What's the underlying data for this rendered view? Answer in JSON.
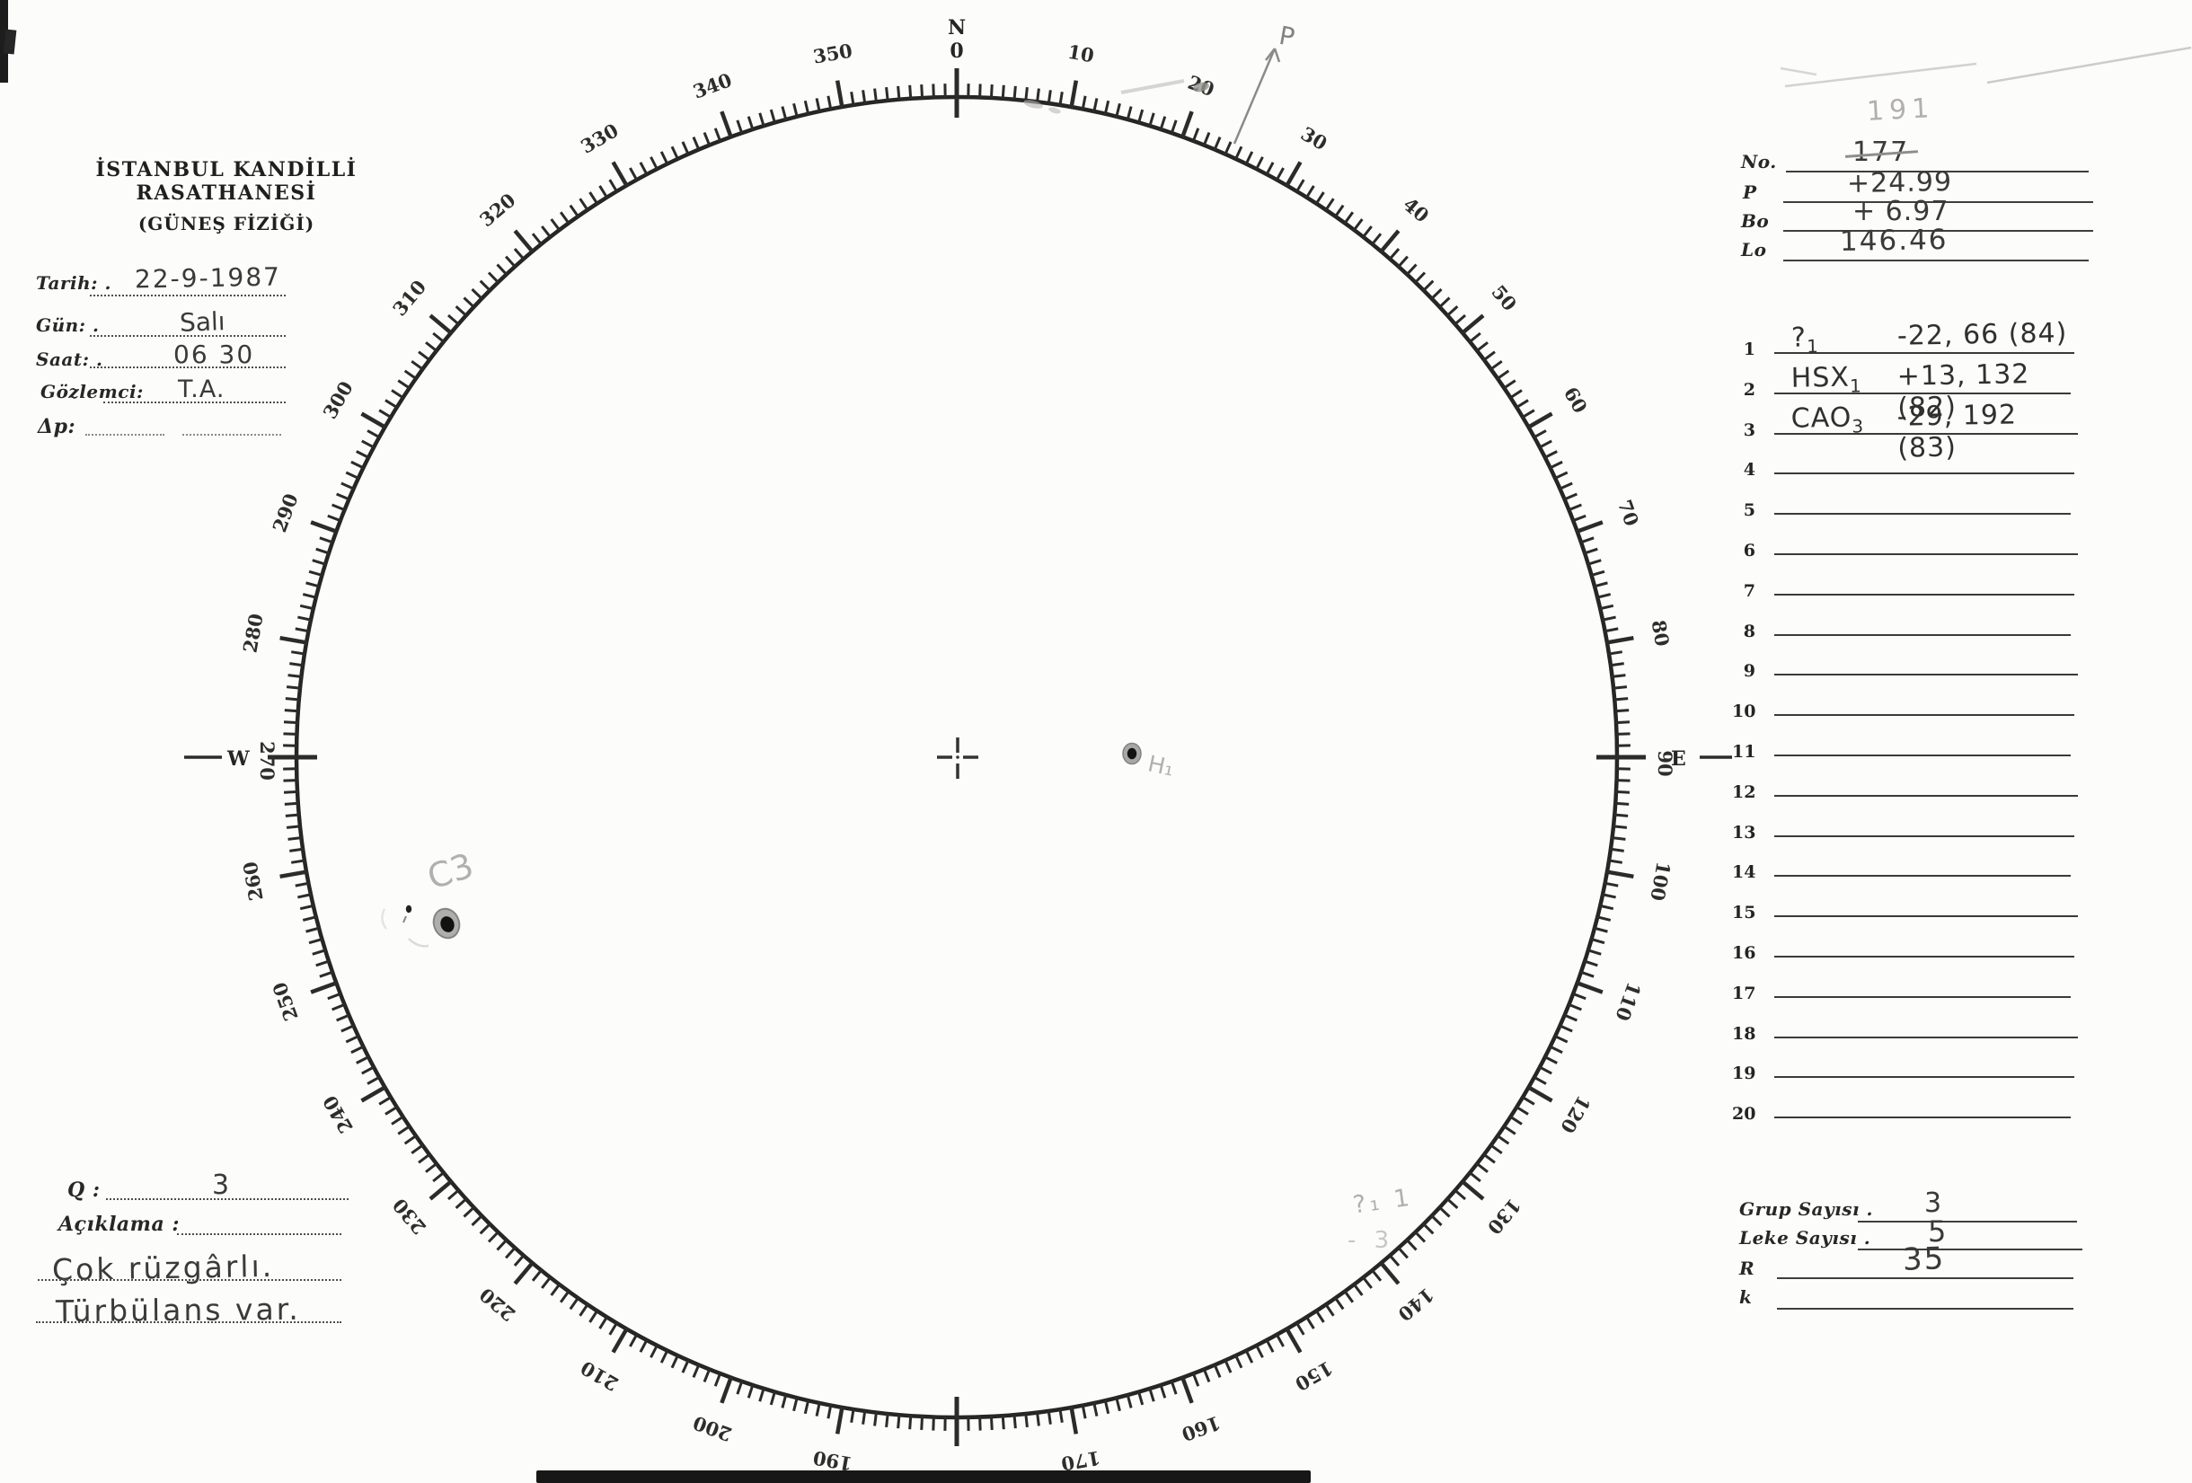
{
  "header": {
    "line1": "İSTANBUL KANDİLLİ RASATHANESİ",
    "line2": "(GÜNEŞ FİZİĞİ)"
  },
  "left_form": {
    "rows": [
      {
        "label": "Tarih: .",
        "value": "22-9-1987"
      },
      {
        "label": "Gün: .",
        "value": "Salı"
      },
      {
        "label": "Saat: .",
        "value": "06 30"
      },
      {
        "label": "Gözlemci:",
        "value": "T.A."
      },
      {
        "label": "Δp:",
        "value": ""
      }
    ]
  },
  "ephemeris": {
    "rows": [
      {
        "label": "No.",
        "value": "177",
        "pencil_above": "191",
        "struck": true
      },
      {
        "label": "P",
        "value": "+24.99"
      },
      {
        "label": "Bo",
        "value": "+ 6.97"
      },
      {
        "label": "Lo",
        "value": "146.46"
      }
    ]
  },
  "group_table": {
    "row_count": 20,
    "entries": [
      {
        "row": 1,
        "name": "?",
        "sub": "1",
        "value": "-22, 66 (84)"
      },
      {
        "row": 2,
        "name": "HSX",
        "sub": "1",
        "value": "+13, 132 (82)"
      },
      {
        "row": 3,
        "name": "CAO",
        "sub": "3",
        "value": "-29, 192 (83)"
      }
    ]
  },
  "summary": {
    "rows": [
      {
        "label": "Grup Sayısı .",
        "value": "3"
      },
      {
        "label": "Leke Sayısı .",
        "value": "5"
      },
      {
        "label": "R",
        "value": "35"
      },
      {
        "label": "k",
        "value": ""
      }
    ]
  },
  "conditions": {
    "q_label": "Q :",
    "q_value": "3",
    "aciklama_label": "Açıklama :",
    "notes": [
      "Çok rüzgârlı.",
      "Türbülans var."
    ]
  },
  "dial": {
    "unit": "degrees",
    "min": 0,
    "max": 360,
    "minor_step": 1,
    "major_step": 10,
    "degree_labels": [
      10,
      20,
      30,
      40,
      50,
      60,
      70,
      80,
      100,
      110,
      120,
      130,
      140,
      150,
      160,
      170,
      190,
      200,
      210,
      220,
      230,
      240,
      250,
      260,
      280,
      290,
      300,
      310,
      320,
      330,
      340,
      350
    ],
    "north_letter": "N",
    "north_value": "0",
    "east_value": "90",
    "east_letter": "E",
    "west_letter": "W",
    "west_value": "270"
  },
  "annotations": {
    "p_arrow_label": "P",
    "spot_label_west": "C3",
    "spot_label_center": "H₁",
    "limb_note_line1": "?₁ 1",
    "limb_note_line2": "- 3"
  }
}
